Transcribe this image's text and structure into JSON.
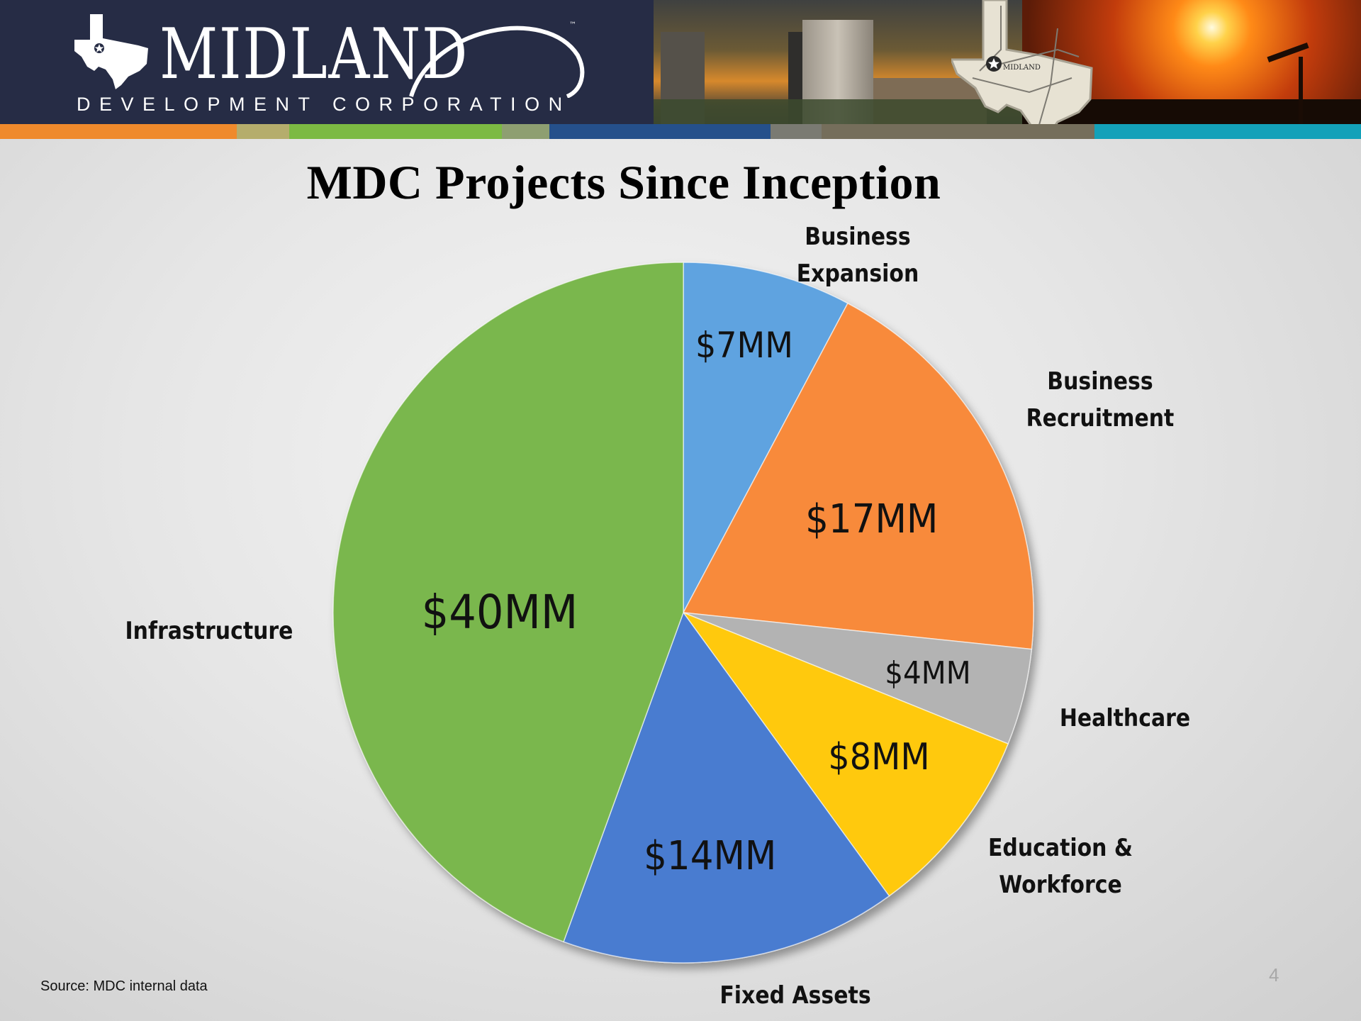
{
  "header": {
    "brand_name": "MIDLAND",
    "brand_sub": "DEVELOPMENT CORPORATION",
    "trademark": "™",
    "map_label": "MIDLAND",
    "stripe_colors": [
      "#ef8a2c",
      "#b5ad6c",
      "#7cba43",
      "#8e9f71",
      "#25508b",
      "#7a7a72",
      "#756e5b",
      "#13a1b9"
    ]
  },
  "slide": {
    "title": "MDC Projects Since Inception",
    "source": "Source: MDC internal data",
    "page_number": "4"
  },
  "chart_data": {
    "type": "pie",
    "title": "MDC Projects Since Inception",
    "unit": "$MM",
    "start_angle_deg": 0,
    "direction": "clockwise",
    "categories": [
      "Business Expansion",
      "Business Recruitment",
      "Healthcare",
      "Education & Workforce",
      "Fixed Assets",
      "Infrastructure"
    ],
    "values": [
      7,
      17,
      4,
      8,
      14,
      40
    ],
    "value_labels": [
      "$7MM",
      "$17MM",
      "$4MM",
      "$8MM",
      "$14MM",
      "$40MM"
    ],
    "colors": [
      "#5fa3e0",
      "#f88a3a",
      "#b3b3b3",
      "#ffc90a",
      "#4a7cd0",
      "#7ab74d"
    ],
    "legend": "none (category labels placed outside slices)"
  },
  "labels": {
    "business_expansion": "Business Expansion",
    "business_recruitment_1": "Business",
    "business_recruitment_2": "Recruitment",
    "healthcare": "Healthcare",
    "education_1": "Education &",
    "education_2": "Workforce",
    "fixed_assets": "Fixed Assets",
    "infrastructure": "Infrastructure"
  },
  "values": {
    "business_expansion": "$7MM",
    "business_recruitment": "$17MM",
    "healthcare": "$4MM",
    "education": "$8MM",
    "fixed_assets": "$14MM",
    "infrastructure": "$40MM"
  }
}
